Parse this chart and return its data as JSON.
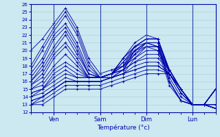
{
  "xlabel": "Température (°c)",
  "xlim": [
    0,
    96
  ],
  "ylim": [
    12,
    26
  ],
  "yticks": [
    12,
    13,
    14,
    15,
    16,
    17,
    18,
    19,
    20,
    21,
    22,
    23,
    24,
    25,
    26
  ],
  "xtick_positions": [
    12,
    36,
    60,
    84
  ],
  "xtick_labels": [
    "Ven",
    "Sam",
    "Dim",
    "Lun"
  ],
  "background_color": "#cce8f0",
  "grid_color": "#aaccdd",
  "line_color": "#0000aa",
  "marker": "+",
  "line_width": 0.7,
  "marker_size": 3.5,
  "dpi": 100,
  "figsize": [
    3.2,
    2.0
  ],
  "forecasts": [
    {
      "x": [
        0,
        6,
        12,
        18,
        24,
        30,
        36,
        42,
        48,
        54,
        60,
        66,
        72,
        78,
        84,
        90,
        96
      ],
      "y": [
        20.0,
        21.5,
        23.5,
        25.5,
        23.0,
        19.0,
        17.0,
        17.5,
        18.0,
        20.5,
        21.0,
        20.5,
        16.0,
        13.5,
        13.0,
        13.0,
        12.5
      ]
    },
    {
      "x": [
        0,
        6,
        12,
        18,
        24,
        30,
        36,
        42,
        48,
        54,
        60,
        66,
        72,
        78,
        84,
        90,
        96
      ],
      "y": [
        18.0,
        20.5,
        23.0,
        25.0,
        22.5,
        18.5,
        16.5,
        17.0,
        17.5,
        20.0,
        20.5,
        20.0,
        15.5,
        13.5,
        13.0,
        13.0,
        12.5
      ]
    },
    {
      "x": [
        0,
        6,
        12,
        18,
        24,
        30,
        36,
        42,
        48,
        54,
        60,
        66,
        72,
        78,
        84,
        90,
        96
      ],
      "y": [
        17.5,
        20.0,
        22.5,
        24.5,
        22.0,
        18.0,
        16.5,
        17.0,
        17.5,
        20.0,
        21.0,
        20.5,
        16.0,
        13.5,
        13.0,
        13.0,
        12.5
      ]
    },
    {
      "x": [
        0,
        6,
        12,
        18,
        24,
        30,
        36,
        42,
        48,
        54,
        60,
        66,
        72,
        78,
        84,
        90,
        96
      ],
      "y": [
        17.0,
        19.0,
        22.0,
        23.5,
        21.0,
        17.5,
        16.5,
        17.0,
        17.5,
        19.5,
        21.0,
        21.0,
        16.0,
        13.5,
        13.0,
        13.0,
        12.5
      ]
    },
    {
      "x": [
        0,
        6,
        12,
        18,
        24,
        30,
        36,
        42,
        48,
        54,
        60,
        66,
        72,
        78,
        84,
        90,
        96
      ],
      "y": [
        16.5,
        18.5,
        21.5,
        23.0,
        20.5,
        17.0,
        16.5,
        16.5,
        17.0,
        19.0,
        20.5,
        20.5,
        16.0,
        13.5,
        13.0,
        13.0,
        12.5
      ]
    },
    {
      "x": [
        0,
        6,
        12,
        18,
        24,
        30,
        36,
        42,
        48,
        54,
        60,
        66,
        72,
        78,
        84,
        90,
        96
      ],
      "y": [
        16.0,
        18.0,
        20.5,
        22.5,
        20.0,
        17.0,
        16.5,
        17.0,
        18.0,
        20.0,
        21.0,
        21.0,
        16.5,
        14.0,
        13.0,
        13.0,
        12.5
      ]
    },
    {
      "x": [
        0,
        6,
        12,
        18,
        24,
        30,
        36,
        42,
        48,
        54,
        60,
        66,
        72,
        78,
        84,
        90,
        96
      ],
      "y": [
        16.0,
        17.5,
        20.0,
        22.0,
        19.5,
        17.0,
        16.5,
        17.0,
        18.5,
        20.5,
        21.5,
        21.5,
        17.0,
        14.5,
        13.0,
        13.0,
        12.5
      ]
    },
    {
      "x": [
        0,
        6,
        12,
        18,
        24,
        30,
        36,
        42,
        48,
        54,
        60,
        66,
        72,
        78,
        84,
        90,
        96
      ],
      "y": [
        15.5,
        17.0,
        19.5,
        21.0,
        19.0,
        16.5,
        16.5,
        17.0,
        19.0,
        20.5,
        21.5,
        21.5,
        17.0,
        14.5,
        13.0,
        13.0,
        12.5
      ]
    },
    {
      "x": [
        0,
        6,
        12,
        18,
        24,
        30,
        36,
        42,
        48,
        54,
        60,
        66,
        72,
        78,
        84,
        90,
        96
      ],
      "y": [
        15.5,
        16.5,
        19.0,
        20.5,
        18.5,
        16.5,
        16.5,
        17.0,
        19.0,
        21.0,
        22.0,
        21.5,
        17.5,
        15.0,
        13.0,
        13.0,
        15.0
      ]
    },
    {
      "x": [
        0,
        6,
        12,
        18,
        24,
        30,
        36,
        42,
        48,
        54,
        60,
        66,
        72,
        78,
        84,
        90,
        96
      ],
      "y": [
        15.0,
        16.0,
        18.0,
        19.5,
        18.0,
        16.5,
        16.5,
        17.0,
        19.0,
        20.5,
        21.5,
        21.5,
        17.5,
        15.0,
        13.0,
        13.0,
        15.0
      ]
    },
    {
      "x": [
        0,
        6,
        12,
        18,
        24,
        30,
        36,
        42,
        48,
        54,
        60,
        66,
        72,
        78,
        84,
        90,
        96
      ],
      "y": [
        15.0,
        15.5,
        17.5,
        18.5,
        17.5,
        16.5,
        16.5,
        17.0,
        18.5,
        20.0,
        21.0,
        21.0,
        17.5,
        15.0,
        13.0,
        13.0,
        15.0
      ]
    },
    {
      "x": [
        0,
        6,
        12,
        18,
        24,
        30,
        36,
        42,
        48,
        54,
        60,
        66,
        72,
        78,
        84,
        90,
        96
      ],
      "y": [
        14.5,
        15.0,
        17.0,
        18.0,
        17.0,
        16.5,
        16.5,
        17.0,
        18.0,
        19.5,
        20.5,
        20.5,
        17.5,
        15.0,
        13.0,
        13.0,
        15.0
      ]
    },
    {
      "x": [
        0,
        6,
        12,
        18,
        24,
        30,
        36,
        42,
        48,
        54,
        60,
        66,
        72,
        78,
        84,
        90,
        96
      ],
      "y": [
        14.5,
        15.0,
        16.5,
        17.5,
        16.5,
        16.5,
        16.5,
        17.0,
        18.0,
        19.0,
        20.0,
        20.0,
        17.5,
        15.0,
        13.0,
        13.0,
        15.0
      ]
    },
    {
      "x": [
        0,
        6,
        12,
        18,
        24,
        30,
        36,
        42,
        48,
        54,
        60,
        66,
        72,
        78,
        84,
        90,
        96
      ],
      "y": [
        14.0,
        15.0,
        16.0,
        17.0,
        16.5,
        16.5,
        16.5,
        16.5,
        17.5,
        18.5,
        19.5,
        19.5,
        17.5,
        15.0,
        13.0,
        13.0,
        15.0
      ]
    },
    {
      "x": [
        0,
        6,
        12,
        18,
        24,
        30,
        36,
        42,
        48,
        54,
        60,
        66,
        72,
        78,
        84,
        90,
        96
      ],
      "y": [
        14.0,
        14.5,
        15.5,
        16.5,
        16.0,
        16.0,
        16.0,
        16.5,
        17.5,
        18.5,
        19.0,
        19.0,
        17.5,
        15.0,
        13.0,
        13.0,
        15.0
      ]
    },
    {
      "x": [
        0,
        6,
        12,
        18,
        24,
        30,
        36,
        42,
        48,
        54,
        60,
        66,
        72,
        78,
        84,
        90,
        96
      ],
      "y": [
        13.5,
        14.0,
        15.0,
        16.0,
        16.0,
        16.0,
        16.0,
        16.5,
        17.0,
        18.0,
        18.5,
        18.5,
        17.0,
        15.0,
        13.0,
        13.0,
        15.0
      ]
    },
    {
      "x": [
        0,
        6,
        12,
        18,
        24,
        30,
        36,
        42,
        48,
        54,
        60,
        66,
        72,
        78,
        84,
        90,
        96
      ],
      "y": [
        13.5,
        14.0,
        15.0,
        16.0,
        16.0,
        16.0,
        16.0,
        16.5,
        17.0,
        17.5,
        18.0,
        18.0,
        17.0,
        15.0,
        13.0,
        13.0,
        15.0
      ]
    },
    {
      "x": [
        0,
        6,
        12,
        18,
        24,
        30,
        36,
        42,
        48,
        54,
        60,
        66,
        72,
        78,
        84,
        90,
        96
      ],
      "y": [
        13.0,
        14.0,
        15.0,
        16.0,
        16.0,
        16.0,
        16.0,
        16.5,
        17.0,
        17.5,
        18.0,
        18.0,
        17.0,
        15.0,
        13.0,
        13.0,
        13.0
      ]
    },
    {
      "x": [
        0,
        6,
        12,
        18,
        24,
        30,
        36,
        42,
        48,
        54,
        60,
        66,
        72,
        78,
        84,
        90,
        96
      ],
      "y": [
        13.0,
        13.5,
        14.5,
        15.5,
        15.5,
        15.5,
        15.5,
        16.0,
        16.5,
        17.0,
        17.5,
        17.5,
        17.0,
        15.0,
        13.0,
        13.0,
        13.0
      ]
    },
    {
      "x": [
        0,
        6,
        12,
        18,
        24,
        30,
        36,
        42,
        48,
        54,
        60,
        66,
        72,
        78,
        84,
        90,
        96
      ],
      "y": [
        13.0,
        13.0,
        14.0,
        15.0,
        15.0,
        15.0,
        15.0,
        15.5,
        16.0,
        16.5,
        17.0,
        17.0,
        17.0,
        14.5,
        13.0,
        13.0,
        13.0
      ]
    }
  ]
}
